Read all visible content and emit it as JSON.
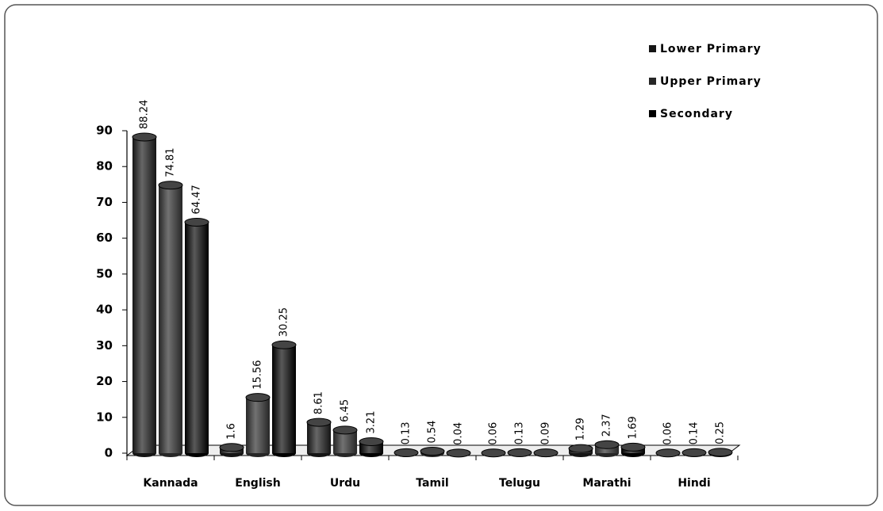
{
  "chart_data": {
    "type": "bar",
    "categories": [
      "Kannada",
      "English",
      "Urdu",
      "Tamil",
      "Telugu",
      "Marathi",
      "Hindi"
    ],
    "series": [
      {
        "name": "Lower Primary",
        "color": "#151515",
        "values": [
          88.24,
          1.6,
          8.61,
          0.13,
          0.06,
          1.29,
          0.06
        ]
      },
      {
        "name": "Upper Primary",
        "color": "#262626",
        "values": [
          74.81,
          15.56,
          6.45,
          0.54,
          0.13,
          2.37,
          0.14
        ]
      },
      {
        "name": "Secondary",
        "color": "#000000",
        "values": [
          64.47,
          30.25,
          3.21,
          0.04,
          0.09,
          1.69,
          0.25
        ]
      }
    ],
    "ylim": [
      0,
      90
    ],
    "yticks": [
      0,
      10,
      20,
      30,
      40,
      50,
      60,
      70,
      80,
      90
    ],
    "grid": false,
    "legend": "top-right"
  }
}
